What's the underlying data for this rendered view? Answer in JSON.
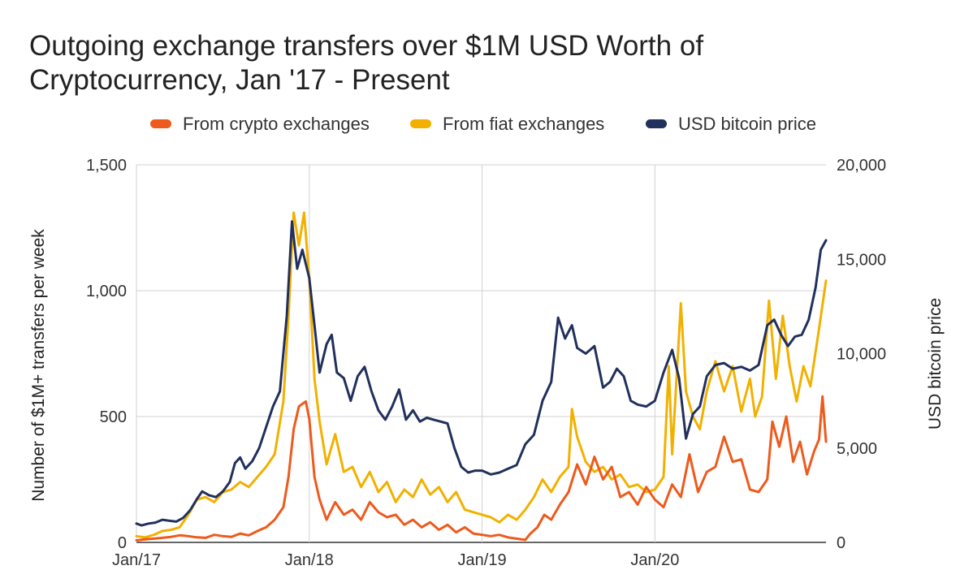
{
  "chart_data": {
    "type": "line",
    "title_lines": [
      "Outgoing exchange transfers over $1M USD Worth of",
      "Cryptocurrency, Jan '17 - Present"
    ],
    "ylabel": "Number of $1M+ transfers per week",
    "y2label": "USD bitcoin price",
    "ylim": [
      0,
      1500
    ],
    "y2lim": [
      0,
      20000
    ],
    "yticks": [
      "0",
      "500",
      "1,000",
      "1,500"
    ],
    "y2ticks": [
      "0",
      "5,000",
      "10,000",
      "15,000",
      "20,000"
    ],
    "xticks": [
      "Jan/17",
      "Jan/18",
      "Jan/19",
      "Jan/20"
    ],
    "legend_position": "top",
    "grid": true,
    "series": [
      {
        "name": "From crypto exchanges",
        "color": "#ee5a1c",
        "axis": "left",
        "points": [
          [
            2017.0,
            8
          ],
          [
            2017.05,
            12
          ],
          [
            2017.1,
            15
          ],
          [
            2017.15,
            18
          ],
          [
            2017.2,
            22
          ],
          [
            2017.25,
            28
          ],
          [
            2017.3,
            25
          ],
          [
            2017.35,
            20
          ],
          [
            2017.4,
            18
          ],
          [
            2017.45,
            30
          ],
          [
            2017.5,
            25
          ],
          [
            2017.55,
            22
          ],
          [
            2017.6,
            35
          ],
          [
            2017.65,
            28
          ],
          [
            2017.7,
            45
          ],
          [
            2017.75,
            60
          ],
          [
            2017.8,
            90
          ],
          [
            2017.85,
            140
          ],
          [
            2017.88,
            260
          ],
          [
            2017.91,
            450
          ],
          [
            2017.94,
            540
          ],
          [
            2017.98,
            560
          ],
          [
            2018.0,
            490
          ],
          [
            2018.03,
            260
          ],
          [
            2018.06,
            170
          ],
          [
            2018.1,
            90
          ],
          [
            2018.15,
            160
          ],
          [
            2018.2,
            110
          ],
          [
            2018.25,
            130
          ],
          [
            2018.3,
            90
          ],
          [
            2018.35,
            160
          ],
          [
            2018.4,
            120
          ],
          [
            2018.45,
            100
          ],
          [
            2018.5,
            110
          ],
          [
            2018.55,
            70
          ],
          [
            2018.6,
            90
          ],
          [
            2018.65,
            60
          ],
          [
            2018.7,
            80
          ],
          [
            2018.75,
            50
          ],
          [
            2018.8,
            70
          ],
          [
            2018.85,
            40
          ],
          [
            2018.9,
            60
          ],
          [
            2018.95,
            35
          ],
          [
            2019.0,
            30
          ],
          [
            2019.05,
            25
          ],
          [
            2019.1,
            30
          ],
          [
            2019.15,
            20
          ],
          [
            2019.2,
            15
          ],
          [
            2019.25,
            10
          ],
          [
            2019.28,
            35
          ],
          [
            2019.32,
            60
          ],
          [
            2019.36,
            110
          ],
          [
            2019.4,
            90
          ],
          [
            2019.45,
            150
          ],
          [
            2019.5,
            200
          ],
          [
            2019.55,
            310
          ],
          [
            2019.6,
            230
          ],
          [
            2019.65,
            340
          ],
          [
            2019.7,
            250
          ],
          [
            2019.75,
            300
          ],
          [
            2019.8,
            180
          ],
          [
            2019.85,
            200
          ],
          [
            2019.9,
            150
          ],
          [
            2019.95,
            220
          ],
          [
            2020.0,
            170
          ],
          [
            2020.05,
            140
          ],
          [
            2020.1,
            230
          ],
          [
            2020.15,
            180
          ],
          [
            2020.2,
            350
          ],
          [
            2020.25,
            200
          ],
          [
            2020.3,
            280
          ],
          [
            2020.35,
            300
          ],
          [
            2020.4,
            420
          ],
          [
            2020.45,
            320
          ],
          [
            2020.5,
            330
          ],
          [
            2020.55,
            210
          ],
          [
            2020.6,
            200
          ],
          [
            2020.65,
            250
          ],
          [
            2020.68,
            480
          ],
          [
            2020.72,
            380
          ],
          [
            2020.76,
            500
          ],
          [
            2020.8,
            320
          ],
          [
            2020.84,
            400
          ],
          [
            2020.88,
            270
          ],
          [
            2020.92,
            360
          ],
          [
            2020.95,
            410
          ],
          [
            2020.97,
            580
          ],
          [
            2020.99,
            400
          ]
        ]
      },
      {
        "name": "From fiat exchanges",
        "color": "#f2b100",
        "axis": "left",
        "points": [
          [
            2017.0,
            25
          ],
          [
            2017.05,
            20
          ],
          [
            2017.1,
            30
          ],
          [
            2017.15,
            45
          ],
          [
            2017.2,
            50
          ],
          [
            2017.25,
            60
          ],
          [
            2017.3,
            110
          ],
          [
            2017.35,
            170
          ],
          [
            2017.4,
            180
          ],
          [
            2017.45,
            160
          ],
          [
            2017.5,
            200
          ],
          [
            2017.55,
            210
          ],
          [
            2017.6,
            240
          ],
          [
            2017.65,
            220
          ],
          [
            2017.7,
            260
          ],
          [
            2017.75,
            300
          ],
          [
            2017.8,
            350
          ],
          [
            2017.85,
            560
          ],
          [
            2017.88,
            900
          ],
          [
            2017.91,
            1310
          ],
          [
            2017.94,
            1180
          ],
          [
            2017.97,
            1310
          ],
          [
            2018.0,
            1050
          ],
          [
            2018.03,
            650
          ],
          [
            2018.06,
            480
          ],
          [
            2018.1,
            310
          ],
          [
            2018.15,
            430
          ],
          [
            2018.2,
            280
          ],
          [
            2018.25,
            300
          ],
          [
            2018.3,
            220
          ],
          [
            2018.35,
            280
          ],
          [
            2018.4,
            200
          ],
          [
            2018.45,
            240
          ],
          [
            2018.5,
            160
          ],
          [
            2018.55,
            210
          ],
          [
            2018.6,
            180
          ],
          [
            2018.65,
            250
          ],
          [
            2018.7,
            190
          ],
          [
            2018.75,
            220
          ],
          [
            2018.8,
            160
          ],
          [
            2018.85,
            200
          ],
          [
            2018.9,
            130
          ],
          [
            2018.95,
            120
          ],
          [
            2019.0,
            110
          ],
          [
            2019.05,
            100
          ],
          [
            2019.1,
            80
          ],
          [
            2019.15,
            110
          ],
          [
            2019.2,
            90
          ],
          [
            2019.25,
            130
          ],
          [
            2019.3,
            180
          ],
          [
            2019.35,
            250
          ],
          [
            2019.4,
            200
          ],
          [
            2019.45,
            260
          ],
          [
            2019.5,
            300
          ],
          [
            2019.52,
            530
          ],
          [
            2019.55,
            420
          ],
          [
            2019.6,
            320
          ],
          [
            2019.65,
            280
          ],
          [
            2019.7,
            300
          ],
          [
            2019.75,
            250
          ],
          [
            2019.8,
            270
          ],
          [
            2019.85,
            220
          ],
          [
            2019.9,
            230
          ],
          [
            2019.95,
            200
          ],
          [
            2020.0,
            210
          ],
          [
            2020.05,
            260
          ],
          [
            2020.08,
            700
          ],
          [
            2020.1,
            350
          ],
          [
            2020.15,
            950
          ],
          [
            2020.18,
            600
          ],
          [
            2020.22,
            500
          ],
          [
            2020.26,
            450
          ],
          [
            2020.3,
            600
          ],
          [
            2020.35,
            720
          ],
          [
            2020.4,
            600
          ],
          [
            2020.45,
            700
          ],
          [
            2020.5,
            520
          ],
          [
            2020.55,
            650
          ],
          [
            2020.58,
            500
          ],
          [
            2020.62,
            580
          ],
          [
            2020.66,
            960
          ],
          [
            2020.7,
            650
          ],
          [
            2020.74,
            900
          ],
          [
            2020.78,
            700
          ],
          [
            2020.82,
            560
          ],
          [
            2020.86,
            700
          ],
          [
            2020.9,
            620
          ],
          [
            2020.95,
            850
          ],
          [
            2020.99,
            1040
          ]
        ]
      },
      {
        "name": "USD bitcoin price",
        "color": "#21305c",
        "axis": "right",
        "points": [
          [
            2017.0,
            1000
          ],
          [
            2017.03,
            900
          ],
          [
            2017.07,
            1000
          ],
          [
            2017.11,
            1050
          ],
          [
            2017.15,
            1200
          ],
          [
            2017.19,
            1150
          ],
          [
            2017.23,
            1100
          ],
          [
            2017.27,
            1300
          ],
          [
            2017.31,
            1700
          ],
          [
            2017.35,
            2300
          ],
          [
            2017.38,
            2700
          ],
          [
            2017.42,
            2500
          ],
          [
            2017.46,
            2400
          ],
          [
            2017.5,
            2700
          ],
          [
            2017.54,
            3200
          ],
          [
            2017.57,
            4200
          ],
          [
            2017.6,
            4500
          ],
          [
            2017.63,
            3900
          ],
          [
            2017.67,
            4300
          ],
          [
            2017.71,
            5000
          ],
          [
            2017.75,
            6100
          ],
          [
            2017.79,
            7200
          ],
          [
            2017.83,
            8000
          ],
          [
            2017.87,
            12000
          ],
          [
            2017.9,
            17000
          ],
          [
            2017.93,
            14500
          ],
          [
            2017.96,
            15500
          ],
          [
            2018.0,
            14000
          ],
          [
            2018.03,
            11500
          ],
          [
            2018.06,
            9000
          ],
          [
            2018.1,
            10500
          ],
          [
            2018.13,
            11000
          ],
          [
            2018.16,
            9000
          ],
          [
            2018.2,
            8700
          ],
          [
            2018.24,
            7500
          ],
          [
            2018.28,
            8800
          ],
          [
            2018.32,
            9300
          ],
          [
            2018.36,
            8000
          ],
          [
            2018.4,
            7000
          ],
          [
            2018.44,
            6500
          ],
          [
            2018.48,
            7200
          ],
          [
            2018.52,
            8100
          ],
          [
            2018.56,
            6500
          ],
          [
            2018.6,
            7000
          ],
          [
            2018.64,
            6400
          ],
          [
            2018.68,
            6600
          ],
          [
            2018.72,
            6500
          ],
          [
            2018.76,
            6400
          ],
          [
            2018.8,
            6300
          ],
          [
            2018.84,
            5000
          ],
          [
            2018.88,
            4000
          ],
          [
            2018.92,
            3700
          ],
          [
            2018.96,
            3800
          ],
          [
            2019.0,
            3800
          ],
          [
            2019.05,
            3600
          ],
          [
            2019.1,
            3700
          ],
          [
            2019.15,
            3900
          ],
          [
            2019.2,
            4100
          ],
          [
            2019.25,
            5200
          ],
          [
            2019.3,
            5700
          ],
          [
            2019.35,
            7500
          ],
          [
            2019.4,
            8500
          ],
          [
            2019.44,
            11900
          ],
          [
            2019.48,
            10800
          ],
          [
            2019.52,
            11500
          ],
          [
            2019.55,
            10300
          ],
          [
            2019.6,
            10000
          ],
          [
            2019.65,
            10400
          ],
          [
            2019.7,
            8200
          ],
          [
            2019.74,
            8500
          ],
          [
            2019.78,
            9200
          ],
          [
            2019.82,
            8800
          ],
          [
            2019.86,
            7500
          ],
          [
            2019.9,
            7300
          ],
          [
            2019.95,
            7200
          ],
          [
            2020.0,
            7500
          ],
          [
            2020.05,
            9000
          ],
          [
            2020.1,
            10200
          ],
          [
            2020.14,
            8700
          ],
          [
            2020.18,
            5500
          ],
          [
            2020.22,
            6800
          ],
          [
            2020.26,
            7200
          ],
          [
            2020.3,
            8800
          ],
          [
            2020.35,
            9400
          ],
          [
            2020.4,
            9500
          ],
          [
            2020.45,
            9200
          ],
          [
            2020.5,
            9300
          ],
          [
            2020.55,
            9100
          ],
          [
            2020.6,
            9400
          ],
          [
            2020.65,
            11500
          ],
          [
            2020.69,
            11800
          ],
          [
            2020.73,
            11000
          ],
          [
            2020.77,
            10400
          ],
          [
            2020.81,
            10900
          ],
          [
            2020.85,
            11000
          ],
          [
            2020.89,
            11800
          ],
          [
            2020.93,
            13500
          ],
          [
            2020.96,
            15500
          ],
          [
            2020.99,
            16000
          ]
        ]
      }
    ]
  }
}
